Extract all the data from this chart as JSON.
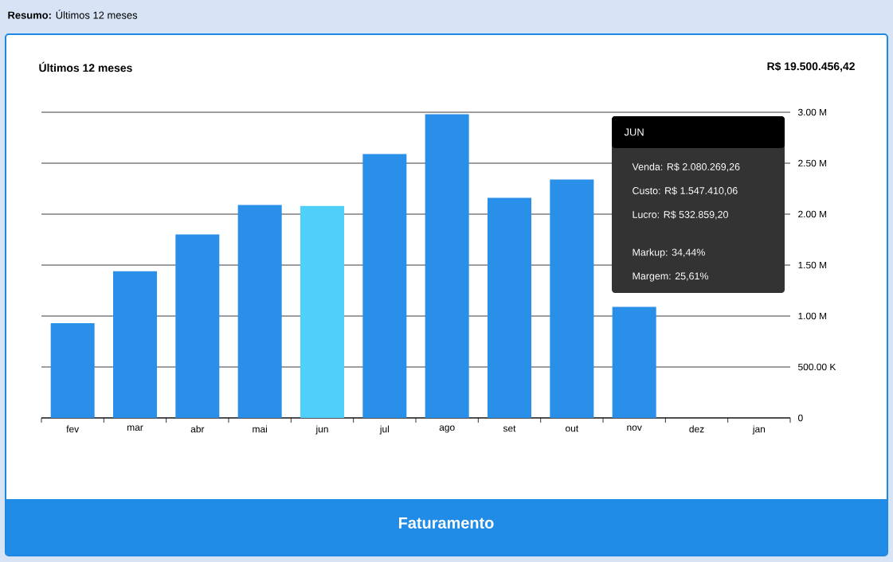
{
  "chart_data": {
    "type": "bar",
    "title": "Últimos 12 meses",
    "subtitle": "R$ 19.500.456,42",
    "categories": [
      "fev",
      "mar",
      "abr",
      "mai",
      "jun",
      "jul",
      "ago",
      "set",
      "out",
      "nov",
      "dez",
      "jan"
    ],
    "values": [
      930000,
      1440000,
      1800000,
      2090000,
      2080000,
      2590000,
      2980000,
      2160000,
      2340000,
      1090000,
      0,
      0
    ],
    "colors": [
      "#2a8fe8",
      "#2a8fe8",
      "#2a8fe8",
      "#2a8fe8",
      "#4fd0fb",
      "#2a8fe8",
      "#2a8fe8",
      "#2a8fe8",
      "#2a8fe8",
      "#2a8fe8",
      "#2a8fe8",
      "#2a8fe8"
    ],
    "ylim": [
      0,
      3000000
    ],
    "yticks": [
      0,
      {
        "value": 500000,
        "label": "500.00 K"
      },
      {
        "value": 1000000,
        "label": "1.00 M"
      },
      {
        "value": 1500000,
        "label": "1.50 M"
      },
      {
        "value": 2000000,
        "label": "2.00 M"
      },
      {
        "value": 2500000,
        "label": "2.50 M"
      },
      {
        "value": 3000000,
        "label": "3.00 M"
      }
    ],
    "grid": "y",
    "annotations": [
      "**Resumo:** Últimos 12 meses",
      "JUN",
      "Venda: R$ 2.080.269,26",
      "Custo: R$ 1.547.410,06",
      "Lucro: R$ 532.859,20",
      "Markup: 34,44%",
      "Margem: 25,61%",
      "Faturamento"
    ]
  }
}
